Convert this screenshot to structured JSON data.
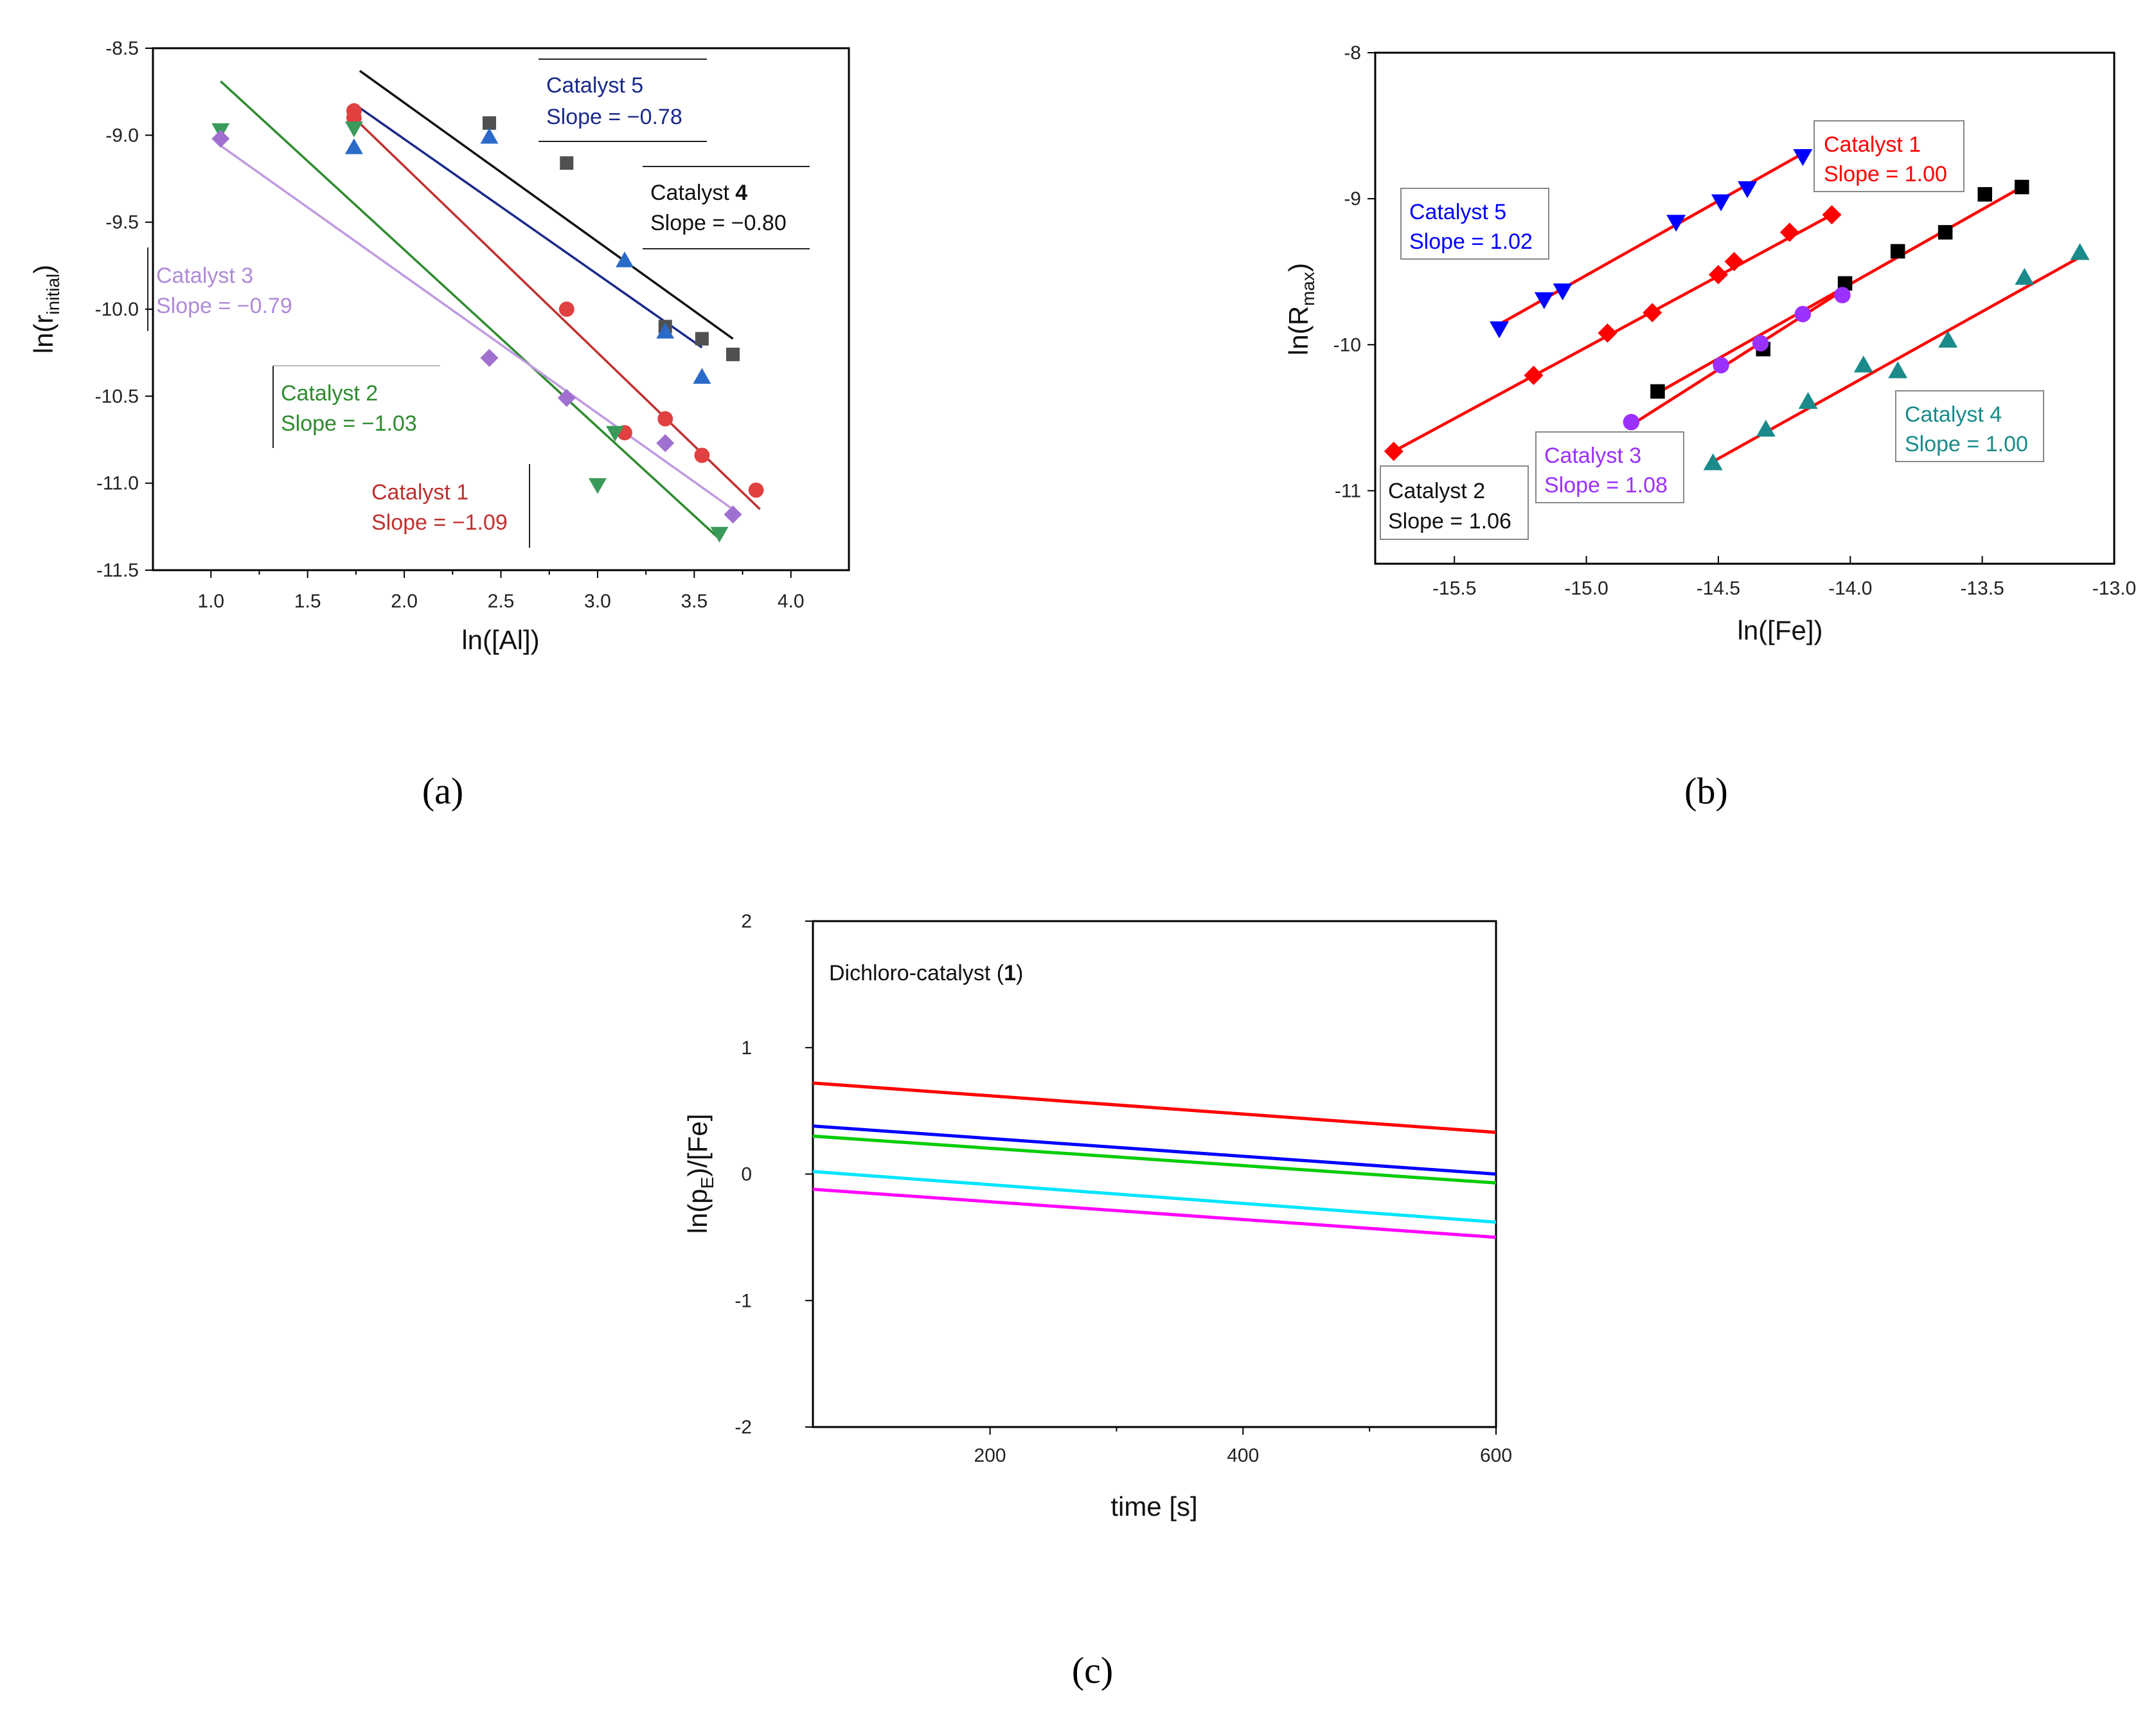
{
  "chart_data": [
    {
      "id": "a",
      "type": "scatter",
      "panel_label": "(a)",
      "xlabel": "ln([Al])",
      "ylabel": "ln(r_initial)",
      "ylabel_main": "ln(r",
      "ylabel_sub": "initial",
      "ylabel_close": ")",
      "xlim": [
        0.7,
        4.3
      ],
      "ylim": [
        -11.5,
        -8.5
      ],
      "xticks": [
        1.0,
        1.5,
        2.0,
        2.5,
        3.0,
        3.5,
        4.0
      ],
      "xtick_labels": [
        "1.0",
        "1.5",
        "2.0",
        "2.5",
        "3.0",
        "3.5",
        "4.0"
      ],
      "yticks": [
        -8.5,
        -9.0,
        -9.5,
        -10.0,
        -10.5,
        -11.0,
        -11.5
      ],
      "ytick_labels": [
        "-8.5",
        "-9.0",
        "-9.5",
        "-10.0",
        "-10.5",
        "-11.0",
        "-11.5"
      ],
      "series": [
        {
          "name": "Catalyst 1",
          "slope_text": "Slope = −1.09",
          "color": "#e04040",
          "line_color": "#c0302f",
          "marker": "circle",
          "points": [
            [
              1.74,
              -8.86
            ],
            [
              1.74,
              -8.9
            ],
            [
              2.84,
              -10.0
            ],
            [
              3.14,
              -10.71
            ],
            [
              3.35,
              -10.63
            ],
            [
              3.54,
              -10.84
            ],
            [
              3.82,
              -11.04
            ]
          ],
          "fit": [
            [
              1.74,
              -8.9
            ],
            [
              3.84,
              -11.15
            ]
          ]
        },
        {
          "name": "Catalyst 2",
          "slope_text": "Slope = −1.03",
          "color": "#3a9a5a",
          "line_color": "#2e8b2e",
          "marker": "triangle-down",
          "points": [
            [
              1.05,
              -8.97
            ],
            [
              1.74,
              -8.96
            ],
            [
              3.09,
              -10.71
            ],
            [
              3.0,
              -11.01
            ],
            [
              3.63,
              -11.29
            ]
          ],
          "fit": [
            [
              1.05,
              -8.69
            ],
            [
              3.63,
              -11.32
            ]
          ]
        },
        {
          "name": "Catalyst 3",
          "slope_text": "Slope = −0.79",
          "color": "#a070d0",
          "line_color": "#c09ae0",
          "marker": "diamond",
          "points": [
            [
              1.05,
              -9.02
            ],
            [
              2.44,
              -10.28
            ],
            [
              2.84,
              -10.51
            ],
            [
              3.35,
              -10.77
            ],
            [
              3.7,
              -11.18
            ]
          ],
          "fit": [
            [
              1.05,
              -9.06
            ],
            [
              3.7,
              -11.15
            ]
          ]
        },
        {
          "name": "Catalyst 4",
          "slope_text": "Slope = −0.80",
          "color": "#505050",
          "line_color": "#111111",
          "marker": "square",
          "points": [
            [
              2.44,
              -8.93
            ],
            [
              2.84,
              -9.16
            ],
            [
              3.35,
              -10.1
            ],
            [
              3.54,
              -10.17
            ],
            [
              3.7,
              -10.26
            ]
          ],
          "fit": [
            [
              1.77,
              -8.63
            ],
            [
              3.7,
              -10.17
            ]
          ]
        },
        {
          "name": "Catalyst 5",
          "slope_text": "Slope = −0.78",
          "color": "#2a6ac8",
          "line_color": "#1a2a8a",
          "marker": "triangle-up",
          "points": [
            [
              1.74,
              -9.07
            ],
            [
              2.44,
              -9.01
            ],
            [
              3.14,
              -9.72
            ],
            [
              3.35,
              -10.13
            ],
            [
              3.54,
              -10.39
            ]
          ],
          "fit": [
            [
              1.74,
              -8.82
            ],
            [
              3.54,
              -10.22
            ]
          ]
        }
      ]
    },
    {
      "id": "b",
      "type": "scatter",
      "panel_label": "(b)",
      "xlabel": "ln([Fe])",
      "ylabel": "ln(R_max)",
      "ylabel_main": "ln(R",
      "ylabel_sub": "max",
      "ylabel_close": ")",
      "xlim": [
        -15.8,
        -13.0
      ],
      "ylim": [
        -11.5,
        -8.0
      ],
      "xticks": [
        -15.5,
        -15.0,
        -14.5,
        -14.0,
        -13.5,
        -13.0
      ],
      "xtick_labels": [
        "-15.5",
        "-15.0",
        "-14.5",
        "-14.0",
        "-13.5",
        "-13.0"
      ],
      "yticks": [
        -8,
        -9,
        -10,
        -11
      ],
      "ytick_labels": [
        "-8",
        "-9",
        "-10",
        "-11"
      ],
      "series": [
        {
          "name": "Catalyst 1",
          "slope_text": "Slope = 1.00",
          "color": "#ff0000",
          "marker": "diamond",
          "points": [
            [
              -15.73,
              -10.73
            ],
            [
              -15.2,
              -10.21
            ],
            [
              -14.92,
              -9.92
            ],
            [
              -14.75,
              -9.78
            ],
            [
              -14.5,
              -9.52
            ],
            [
              -14.44,
              -9.43
            ],
            [
              -14.23,
              -9.23
            ],
            [
              -14.07,
              -9.11
            ]
          ],
          "fit": [
            [
              -15.73,
              -10.73
            ],
            [
              -14.07,
              -9.11
            ]
          ]
        },
        {
          "name": "Catalyst 2",
          "slope_text": "Slope = 1.06",
          "color": "#000000",
          "marker": "square",
          "points": [
            [
              -14.73,
              -10.32
            ],
            [
              -14.33,
              -10.03
            ],
            [
              -14.02,
              -9.58
            ],
            [
              -13.82,
              -9.36
            ],
            [
              -13.64,
              -9.23
            ],
            [
              -13.49,
              -8.97
            ],
            [
              -13.35,
              -8.92
            ]
          ],
          "fit": [
            [
              -14.73,
              -10.33
            ],
            [
              -13.35,
              -8.92
            ]
          ]
        },
        {
          "name": "Catalyst 3",
          "slope_text": "Slope = 1.08",
          "color": "#9b30ff",
          "marker": "circle",
          "points": [
            [
              -14.83,
              -10.53
            ],
            [
              -14.49,
              -10.14
            ],
            [
              -14.34,
              -9.99
            ],
            [
              -14.18,
              -9.79
            ],
            [
              -14.03,
              -9.66
            ]
          ],
          "fit": [
            [
              -14.83,
              -10.55
            ],
            [
              -14.03,
              -9.63
            ]
          ]
        },
        {
          "name": "Catalyst 4",
          "slope_text": "Slope = 1.00",
          "color": "#1a8a8a",
          "marker": "triangle-up",
          "points": [
            [
              -14.52,
              -10.81
            ],
            [
              -14.32,
              -10.58
            ],
            [
              -14.16,
              -10.39
            ],
            [
              -13.95,
              -10.14
            ],
            [
              -13.82,
              -10.18
            ],
            [
              -13.63,
              -9.97
            ],
            [
              -13.34,
              -9.54
            ],
            [
              -13.13,
              -9.37
            ]
          ],
          "fit": [
            [
              -14.52,
              -10.8
            ],
            [
              -13.13,
              -9.4
            ]
          ]
        },
        {
          "name": "Catalyst 5",
          "slope_text": "Slope = 1.02",
          "color": "#0000ff",
          "marker": "triangle-down",
          "points": [
            [
              -15.33,
              -9.89
            ],
            [
              -15.16,
              -9.69
            ],
            [
              -15.09,
              -9.63
            ],
            [
              -14.66,
              -9.16
            ],
            [
              -14.49,
              -9.02
            ],
            [
              -14.39,
              -8.93
            ],
            [
              -14.18,
              -8.71
            ]
          ],
          "fit": [
            [
              -15.33,
              -9.86
            ],
            [
              -14.18,
              -8.69
            ]
          ]
        }
      ]
    },
    {
      "id": "c",
      "type": "line",
      "panel_label": "(c)",
      "title": "Dichloro-catalyst (1)",
      "title_main": "Dichloro-catalyst (",
      "title_bold": "1",
      "title_close": ")",
      "xlabel": "time [s]",
      "ylabel": "ln(p_E)/[Fe]",
      "ylabel_main": "ln(p",
      "ylabel_sub": "E",
      "ylabel_close": ")/[Fe]",
      "xlim": [
        60,
        600
      ],
      "ylim": [
        -2,
        2
      ],
      "xticks": [
        200,
        400,
        600
      ],
      "xtick_labels": [
        "200",
        "400",
        "600"
      ],
      "yticks": [
        2,
        1,
        0,
        -1,
        -2
      ],
      "ytick_labels": [
        "2",
        "1",
        "0",
        "-1",
        "-2"
      ],
      "series": [
        {
          "name": "red",
          "color": "#ff0000",
          "x": [
            60,
            600
          ],
          "y": [
            0.72,
            0.33
          ]
        },
        {
          "name": "blue",
          "color": "#0000ff",
          "x": [
            60,
            600
          ],
          "y": [
            0.38,
            0.0
          ]
        },
        {
          "name": "green",
          "color": "#00cc00",
          "x": [
            60,
            600
          ],
          "y": [
            0.3,
            -0.07
          ]
        },
        {
          "name": "cyan",
          "color": "#00e5ff",
          "x": [
            60,
            600
          ],
          "y": [
            0.02,
            -0.38
          ]
        },
        {
          "name": "magenta",
          "color": "#ff00ff",
          "x": [
            60,
            600
          ],
          "y": [
            -0.12,
            -0.5
          ]
        }
      ]
    }
  ]
}
